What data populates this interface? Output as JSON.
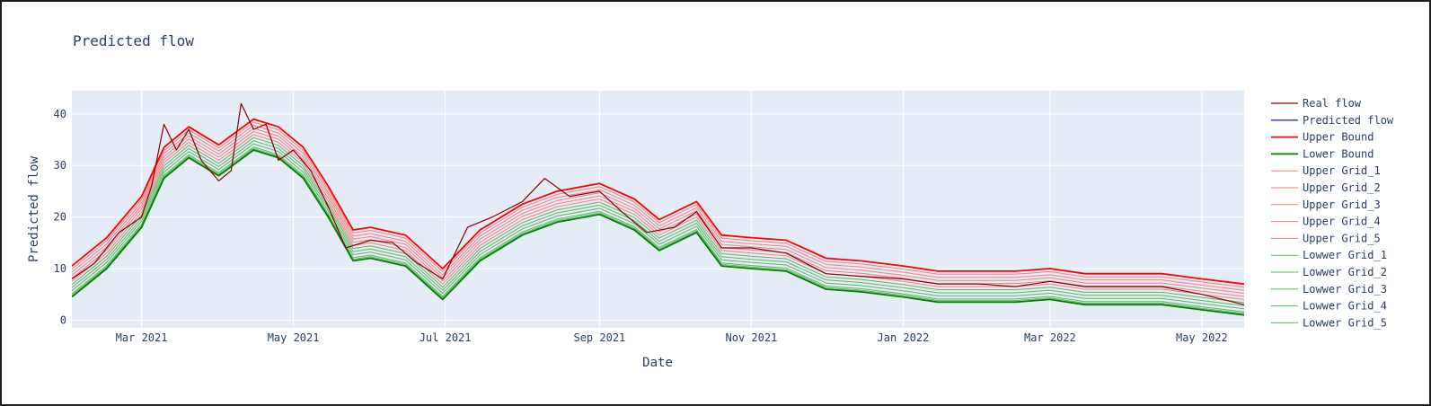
{
  "chart_data": {
    "type": "line",
    "title": "Predicted flow",
    "xlabel": "Date",
    "ylabel": "Predicted flow",
    "x_range": [
      "2021-02-01",
      "2022-05-18"
    ],
    "ylim": [
      -1.5,
      44.5
    ],
    "x_ticks": [
      {
        "date": "2021-03-01",
        "label": "Mar 2021"
      },
      {
        "date": "2021-05-01",
        "label": "May 2021"
      },
      {
        "date": "2021-07-01",
        "label": "Jul 2021"
      },
      {
        "date": "2021-09-01",
        "label": "Sep 2021"
      },
      {
        "date": "2021-11-01",
        "label": "Nov 2021"
      },
      {
        "date": "2022-01-01",
        "label": "Jan 2022"
      },
      {
        "date": "2022-03-01",
        "label": "Mar 2022"
      },
      {
        "date": "2022-05-01",
        "label": "May 2022"
      }
    ],
    "y_ticks": [
      0,
      10,
      20,
      30,
      40
    ],
    "grid": true,
    "legend_position": "right",
    "predicted_flow": {
      "x": [
        "2021-02-01",
        "2021-02-15",
        "2021-03-01",
        "2021-03-10",
        "2021-03-20",
        "2021-04-01",
        "2021-04-15",
        "2021-04-25",
        "2021-05-05",
        "2021-05-15",
        "2021-05-25",
        "2021-06-01",
        "2021-06-15",
        "2021-06-30",
        "2021-07-15",
        "2021-08-01",
        "2021-08-15",
        "2021-09-01",
        "2021-09-15",
        "2021-09-25",
        "2021-10-10",
        "2021-10-20",
        "2021-11-01",
        "2021-11-15",
        "2021-12-01",
        "2021-12-15",
        "2022-01-01",
        "2022-01-15",
        "2022-02-01",
        "2022-02-15",
        "2022-03-01",
        "2022-03-15",
        "2022-04-01",
        "2022-04-15",
        "2022-05-01",
        "2022-05-18"
      ],
      "values": [
        7.5,
        13.0,
        21.0,
        30.5,
        34.5,
        31.0,
        36.0,
        34.5,
        30.5,
        23.0,
        14.5,
        15.0,
        13.5,
        7.0,
        14.5,
        19.5,
        22.0,
        23.5,
        20.5,
        16.5,
        20.0,
        13.5,
        13.0,
        12.5,
        9.0,
        8.5,
        7.5,
        6.5,
        6.5,
        6.5,
        7.0,
        6.0,
        6.0,
        6.0,
        5.0,
        4.0
      ]
    },
    "real_flow": {
      "x": [
        "2021-02-01",
        "2021-02-10",
        "2021-02-20",
        "2021-03-01",
        "2021-03-05",
        "2021-03-10",
        "2021-03-15",
        "2021-03-20",
        "2021-03-25",
        "2021-04-01",
        "2021-04-06",
        "2021-04-10",
        "2021-04-15",
        "2021-04-20",
        "2021-04-25",
        "2021-05-01",
        "2021-05-08",
        "2021-05-15",
        "2021-05-22",
        "2021-06-01",
        "2021-06-10",
        "2021-06-20",
        "2021-06-30",
        "2021-07-10",
        "2021-07-20",
        "2021-08-01",
        "2021-08-10",
        "2021-08-20",
        "2021-09-01",
        "2021-09-10",
        "2021-09-20",
        "2021-10-01",
        "2021-10-10",
        "2021-10-20",
        "2021-11-01",
        "2021-11-15",
        "2021-12-01",
        "2021-12-15",
        "2022-01-01",
        "2022-01-15",
        "2022-02-01",
        "2022-02-15",
        "2022-03-01",
        "2022-03-15",
        "2022-04-01",
        "2022-04-15",
        "2022-05-01",
        "2022-05-18"
      ],
      "values": [
        8.0,
        11.0,
        17.0,
        20.0,
        26.0,
        38.0,
        33.0,
        37.0,
        31.0,
        27.0,
        29.0,
        42.0,
        37.0,
        38.0,
        31.0,
        33.0,
        29.0,
        22.0,
        14.0,
        15.5,
        15.0,
        11.0,
        8.0,
        18.0,
        20.0,
        23.0,
        27.5,
        24.0,
        25.0,
        21.0,
        17.0,
        18.0,
        21.0,
        14.0,
        14.0,
        13.0,
        9.0,
        8.5,
        8.0,
        7.0,
        7.0,
        6.5,
        7.5,
        6.5,
        6.5,
        6.5,
        5.0,
        3.0
      ]
    },
    "series": [
      {
        "name": "Real flow",
        "color": "#8b0000",
        "width": 1.2,
        "source": "real"
      },
      {
        "name": "Predicted flow",
        "color": "#00008b",
        "width": 1.2,
        "source": "none"
      },
      {
        "name": "Upper Bound",
        "color": "#ff0000",
        "width": 1.8,
        "offset": 3.0,
        "source": "pred"
      },
      {
        "name": "Lower Bound",
        "color": "#008000",
        "width": 1.8,
        "offset": -3.0,
        "source": "pred"
      },
      {
        "name": "Upper Grid_1",
        "color": "#f08080",
        "width": 1.0,
        "offset": 2.4,
        "source": "pred"
      },
      {
        "name": "Upper Grid_2",
        "color": "#f08080",
        "width": 1.0,
        "offset": 1.8,
        "source": "pred"
      },
      {
        "name": "Upper Grid_3",
        "color": "#f08080",
        "width": 1.0,
        "offset": 1.2,
        "source": "pred"
      },
      {
        "name": "Upper Grid_4",
        "color": "#f08080",
        "width": 1.0,
        "offset": 0.6,
        "source": "pred"
      },
      {
        "name": "Upper Grid_5",
        "color": "#f08080",
        "width": 1.0,
        "offset": 0.0,
        "source": "pred"
      },
      {
        "name": "Lowwer Grid_1",
        "color": "#5cb85c",
        "width": 1.0,
        "offset": -0.6,
        "source": "pred"
      },
      {
        "name": "Lowwer Grid_2",
        "color": "#5cb85c",
        "width": 1.0,
        "offset": -1.2,
        "source": "pred"
      },
      {
        "name": "Lowwer Grid_3",
        "color": "#5cb85c",
        "width": 1.0,
        "offset": -1.8,
        "source": "pred"
      },
      {
        "name": "Lowwer Grid_4",
        "color": "#5cb85c",
        "width": 1.0,
        "offset": -2.4,
        "source": "pred"
      },
      {
        "name": "Lowwer Grid_5",
        "color": "#5cb85c",
        "width": 1.0,
        "offset": -2.7,
        "source": "pred"
      }
    ]
  }
}
